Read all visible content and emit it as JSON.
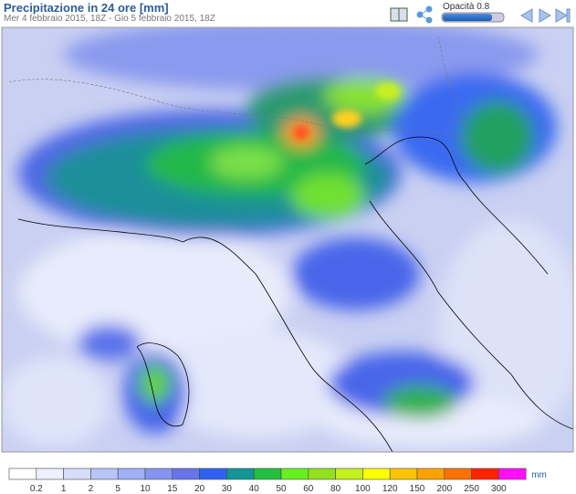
{
  "header": {
    "title": "Precipitazione in 24 ore [mm]",
    "subtitle": "Mer 4 febbraio 2015, 18Z - Gio 5 febbraio 2015, 18Z",
    "opacity_label": "Opacità 0.8"
  },
  "legend": {
    "unit": "mm",
    "ticks": [
      "0.2",
      "1",
      "2",
      "5",
      "10",
      "15",
      "20",
      "30",
      "40",
      "50",
      "60",
      "80",
      "100",
      "120",
      "150",
      "200",
      "250",
      "300"
    ],
    "colors": [
      "#ffffff",
      "#eef0ff",
      "#d6ddfa",
      "#b8c5f8",
      "#9fb0f5",
      "#8595ee",
      "#6676ea",
      "#2f62f0",
      "#119595",
      "#22c040",
      "#66f020",
      "#92e020",
      "#c2f020",
      "#ffff00",
      "#ffc400",
      "#ffa200",
      "#ff7200",
      "#ff2400",
      "#ff10ff"
    ]
  }
}
